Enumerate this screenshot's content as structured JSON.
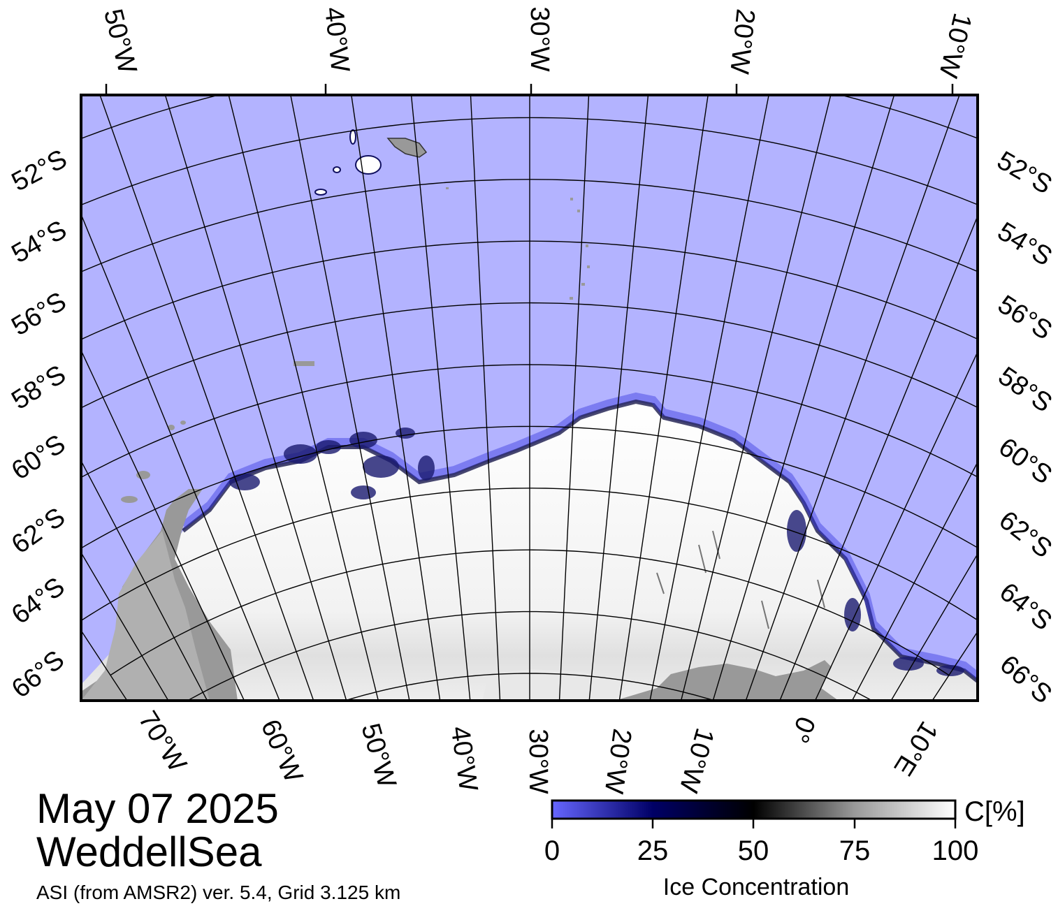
{
  "title": {
    "date": "May 07 2025",
    "region": "WeddellSea",
    "product": "ASI (from AMSR2) ver. 5.4,  Grid 3.125 km"
  },
  "map": {
    "top_lon_labels": [
      "50°W",
      "40°W",
      "30°W",
      "20°W",
      "10°W"
    ],
    "bottom_lon_labels": [
      "70°W",
      "60°W",
      "50°W",
      "40°W",
      "30°W",
      "20°W",
      "10°W",
      "0°",
      "10°E"
    ],
    "lat_labels": [
      "52°S",
      "54°S",
      "56°S",
      "58°S",
      "60°S",
      "62°S",
      "64°S",
      "66°S"
    ],
    "colors": {
      "open_water": "#b3b3ff",
      "ice_full": "#ffffff",
      "land": "#999999",
      "land_ice": "#b0b0b0",
      "grid": "#000000"
    }
  },
  "colorbar": {
    "label": "Ice Concentration",
    "unit": "C[%]",
    "ticks": [
      "0",
      "25",
      "50",
      "75",
      "100"
    ],
    "range": [
      0,
      100
    ],
    "stops": [
      "#6666ff",
      "#000066",
      "#000000",
      "#999999",
      "#ffffff"
    ]
  }
}
